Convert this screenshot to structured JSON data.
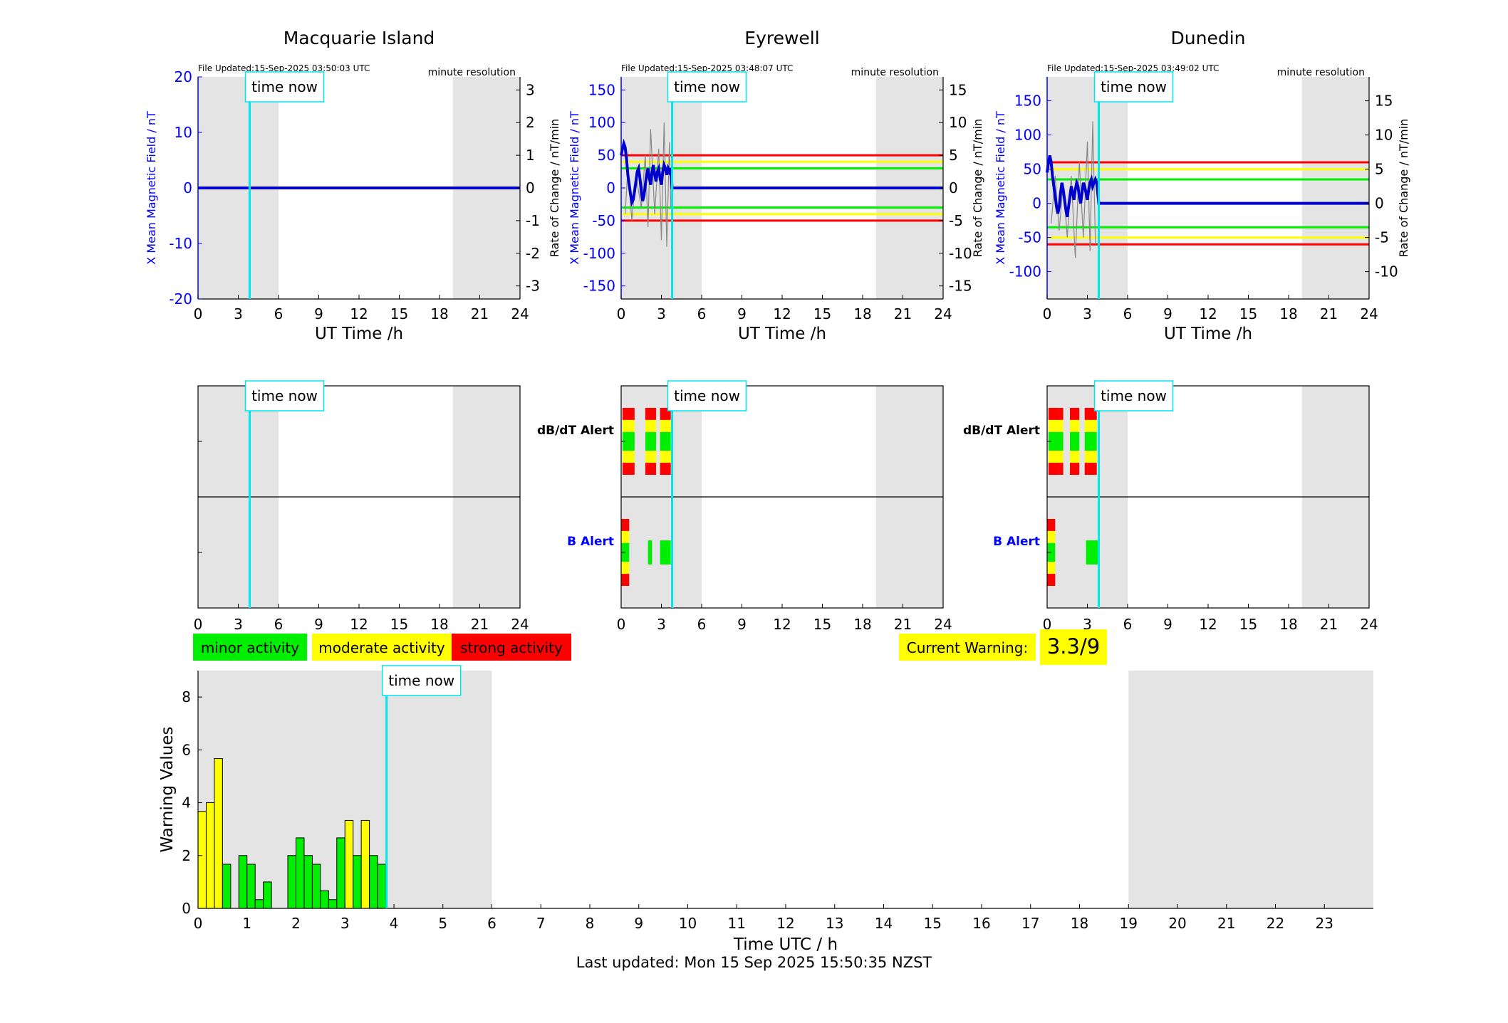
{
  "page": {
    "last_updated": "Last updated: Mon 15 Sep 2025 15:50:35 NZST",
    "current_warning_label": "Current Warning:",
    "current_warning_value": "3.3/9",
    "time_now_label": "time now"
  },
  "legend": [
    {
      "label": "minor activity",
      "color": "#00ee00"
    },
    {
      "label": "moderate activity",
      "color": "#ffff00"
    },
    {
      "label": "strong activity",
      "color": "#ff0000"
    }
  ],
  "colors": {
    "shade": "#e4e4e4",
    "time_now": "#00e5ee",
    "field": "#0000cc",
    "rate": "#888888",
    "green": "#00ee00",
    "yellow": "#ffff00",
    "red": "#ff0000"
  },
  "labels": {
    "x_axis": "UT Time /h",
    "left_axis": "X Mean Magnetic Field / nT",
    "right_axis": "Rate of Change / nT/min",
    "minute_resolution": "minute resolution",
    "dbdt_alert": "dB/dT Alert",
    "b_alert": "B Alert",
    "bottom_x_axis": "Time UTC / h",
    "bottom_y_axis": "Warning Values"
  },
  "chart_data": [
    {
      "type": "line",
      "title": "Macquarie Island",
      "file_updated": "File Updated:15-Sep-2025 03:50:03 UTC",
      "time_now_h": 3.85,
      "shaded_h": [
        [
          0,
          6
        ],
        [
          19,
          24
        ]
      ],
      "xlim": [
        0,
        24
      ],
      "xticks": [
        0,
        3,
        6,
        9,
        12,
        15,
        18,
        21,
        24
      ],
      "ylim_left": [
        -20,
        20
      ],
      "yticks_left": [
        -20,
        -10,
        0,
        10,
        20
      ],
      "ylim_right": [
        -3.4,
        3.4
      ],
      "yticks_right": [
        -3,
        -2,
        -1,
        0,
        1,
        2,
        3
      ],
      "thresholds": [],
      "field_series": {
        "x": [
          0,
          24
        ],
        "y": [
          0,
          0
        ]
      },
      "rate_series": {
        "x": [],
        "y": []
      },
      "dbdt_alert_blocks": [],
      "b_alert_blocks": []
    },
    {
      "type": "line",
      "title": "Eyrewell",
      "file_updated": "File Updated:15-Sep-2025 03:48:07 UTC",
      "time_now_h": 3.8,
      "shaded_h": [
        [
          0,
          6
        ],
        [
          19,
          24
        ]
      ],
      "xlim": [
        0,
        24
      ],
      "xticks": [
        0,
        3,
        6,
        9,
        12,
        15,
        18,
        21,
        24
      ],
      "ylim_left": [
        -170,
        170
      ],
      "yticks_left": [
        -150,
        -100,
        -50,
        0,
        50,
        100,
        150
      ],
      "ylim_right": [
        -17,
        17
      ],
      "yticks_right": [
        -15,
        -10,
        -5,
        0,
        5,
        10,
        15
      ],
      "thresholds": [
        {
          "level": 50,
          "color": "red"
        },
        {
          "level": 40,
          "color": "yellow"
        },
        {
          "level": 30,
          "color": "green"
        },
        {
          "level": -30,
          "color": "green"
        },
        {
          "level": -40,
          "color": "yellow"
        },
        {
          "level": -50,
          "color": "red"
        }
      ],
      "field_series": {
        "x": [
          0,
          0.1,
          0.2,
          0.3,
          0.4,
          0.5,
          0.6,
          0.7,
          0.8,
          0.9,
          1.0,
          1.1,
          1.2,
          1.3,
          1.4,
          1.5,
          1.6,
          1.7,
          1.8,
          1.9,
          2.0,
          2.1,
          2.2,
          2.3,
          2.4,
          2.5,
          2.6,
          2.7,
          2.8,
          2.9,
          3.0,
          3.1,
          3.2,
          3.3,
          3.4,
          3.5,
          3.6,
          3.7,
          3.8,
          24
        ],
        "y": [
          50,
          60,
          68,
          62,
          45,
          20,
          5,
          -10,
          -22,
          -18,
          -5,
          10,
          25,
          30,
          15,
          -5,
          -20,
          -12,
          5,
          20,
          30,
          15,
          5,
          25,
          35,
          20,
          10,
          25,
          30,
          15,
          5,
          25,
          35,
          30,
          20,
          30,
          25,
          30,
          0,
          0
        ]
      },
      "rate_series": {
        "x": [
          0.3,
          0.5,
          0.8,
          1.1,
          1.5,
          1.8,
          2.0,
          2.2,
          2.5,
          2.8,
          3.0,
          3.2,
          3.4,
          3.6,
          3.7
        ],
        "y": [
          -4,
          3,
          -5,
          2,
          -3,
          5,
          -6,
          9,
          -4,
          6,
          -8,
          10,
          -9,
          7,
          -3
        ]
      },
      "dbdt_alert_blocks": [
        {
          "start_h": 0.1,
          "end_h": 1.0,
          "level": "red"
        },
        {
          "start_h": 1.8,
          "end_h": 2.6,
          "level": "red"
        },
        {
          "start_h": 2.9,
          "end_h": 3.7,
          "level": "red"
        }
      ],
      "b_alert_blocks": [
        {
          "start_h": 0.0,
          "end_h": 0.6,
          "level": "red"
        },
        {
          "start_h": 2.0,
          "end_h": 2.3,
          "level": "green"
        },
        {
          "start_h": 2.9,
          "end_h": 3.7,
          "level": "green"
        }
      ]
    },
    {
      "type": "line",
      "title": "Dunedin",
      "file_updated": "File Updated:15-Sep-2025 03:49:02 UTC",
      "time_now_h": 3.85,
      "shaded_h": [
        [
          0,
          6
        ],
        [
          19,
          24
        ]
      ],
      "xlim": [
        0,
        24
      ],
      "xticks": [
        0,
        3,
        6,
        9,
        12,
        15,
        18,
        21,
        24
      ],
      "ylim_left": [
        -140,
        185
      ],
      "yticks_left": [
        -100,
        -50,
        0,
        50,
        100,
        150
      ],
      "ylim_right": [
        -14,
        18.5
      ],
      "yticks_right": [
        -10,
        -5,
        0,
        5,
        10,
        15
      ],
      "thresholds": [
        {
          "level": 60,
          "color": "red"
        },
        {
          "level": 50,
          "color": "yellow"
        },
        {
          "level": 35,
          "color": "green"
        },
        {
          "level": -35,
          "color": "green"
        },
        {
          "level": -50,
          "color": "yellow"
        },
        {
          "level": -60,
          "color": "red"
        }
      ],
      "field_series": {
        "x": [
          0,
          0.1,
          0.2,
          0.3,
          0.4,
          0.5,
          0.6,
          0.7,
          0.8,
          0.9,
          1.0,
          1.1,
          1.2,
          1.3,
          1.4,
          1.5,
          1.6,
          1.7,
          1.8,
          1.9,
          2.0,
          2.1,
          2.2,
          2.3,
          2.4,
          2.5,
          2.6,
          2.7,
          2.8,
          2.9,
          3.0,
          3.1,
          3.2,
          3.3,
          3.4,
          3.5,
          3.6,
          3.7,
          3.85,
          24
        ],
        "y": [
          45,
          60,
          70,
          60,
          40,
          25,
          10,
          -5,
          -15,
          -5,
          15,
          30,
          20,
          5,
          -10,
          -20,
          -5,
          10,
          25,
          15,
          5,
          20,
          30,
          25,
          10,
          0,
          15,
          30,
          25,
          15,
          5,
          20,
          30,
          35,
          25,
          30,
          35,
          30,
          0,
          0
        ]
      },
      "rate_series": {
        "x": [
          0.3,
          0.6,
          0.9,
          1.2,
          1.5,
          1.8,
          2.1,
          2.4,
          2.7,
          3.0,
          3.2,
          3.4,
          3.6
        ],
        "y": [
          -3,
          4,
          -4,
          3,
          -5,
          4,
          -8,
          6,
          -5,
          9,
          -7,
          12,
          -6
        ]
      },
      "dbdt_alert_blocks": [
        {
          "start_h": 0.1,
          "end_h": 0.9,
          "level": "red"
        },
        {
          "start_h": 0.9,
          "end_h": 1.2,
          "level": "red"
        },
        {
          "start_h": 1.7,
          "end_h": 2.4,
          "level": "red"
        },
        {
          "start_h": 2.8,
          "end_h": 3.7,
          "level": "red"
        }
      ],
      "b_alert_blocks": [
        {
          "start_h": 0.0,
          "end_h": 0.6,
          "level": "red"
        },
        {
          "start_h": 2.9,
          "end_h": 3.9,
          "level": "green"
        }
      ]
    },
    {
      "type": "bar",
      "title": "",
      "xlabel": "Time UTC / h",
      "ylabel": "Warning Values",
      "xlim": [
        0,
        24
      ],
      "ylim": [
        0,
        9
      ],
      "xticks": [
        0,
        1,
        2,
        3,
        4,
        5,
        6,
        7,
        8,
        9,
        10,
        11,
        12,
        13,
        14,
        15,
        16,
        17,
        18,
        19,
        20,
        21,
        22,
        23
      ],
      "yticks": [
        0,
        2,
        4,
        6,
        8
      ],
      "bar_width_h": 0.1667,
      "time_now_h": 3.85,
      "shaded_h": [
        [
          0,
          6
        ],
        [
          19,
          24
        ]
      ],
      "bars": [
        {
          "t": 0.0,
          "value": 3.67,
          "level": "yellow"
        },
        {
          "t": 0.167,
          "value": 4.0,
          "level": "yellow"
        },
        {
          "t": 0.333,
          "value": 5.67,
          "level": "yellow"
        },
        {
          "t": 0.5,
          "value": 1.67,
          "level": "green"
        },
        {
          "t": 0.833,
          "value": 2.0,
          "level": "green"
        },
        {
          "t": 1.0,
          "value": 1.67,
          "level": "green"
        },
        {
          "t": 1.167,
          "value": 0.33,
          "level": "green"
        },
        {
          "t": 1.333,
          "value": 1.0,
          "level": "green"
        },
        {
          "t": 1.833,
          "value": 2.0,
          "level": "green"
        },
        {
          "t": 2.0,
          "value": 2.67,
          "level": "green"
        },
        {
          "t": 2.167,
          "value": 2.0,
          "level": "green"
        },
        {
          "t": 2.333,
          "value": 1.67,
          "level": "green"
        },
        {
          "t": 2.5,
          "value": 0.67,
          "level": "green"
        },
        {
          "t": 2.667,
          "value": 0.33,
          "level": "green"
        },
        {
          "t": 2.833,
          "value": 2.67,
          "level": "green"
        },
        {
          "t": 3.0,
          "value": 3.33,
          "level": "yellow"
        },
        {
          "t": 3.167,
          "value": 2.0,
          "level": "green"
        },
        {
          "t": 3.333,
          "value": 3.33,
          "level": "yellow"
        },
        {
          "t": 3.5,
          "value": 2.0,
          "level": "green"
        },
        {
          "t": 3.667,
          "value": 1.67,
          "level": "green"
        }
      ]
    }
  ]
}
